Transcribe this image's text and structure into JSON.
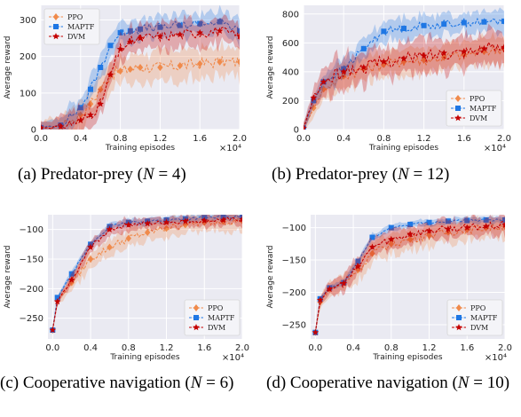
{
  "figures": [
    {
      "id": "a",
      "caption_prefix": "(a) Predator-prey (",
      "caption_var": "N",
      "caption_rel": " = 4",
      "caption_suffix": ")",
      "chart_data": {
        "type": "line",
        "xlabel": "Training episodes",
        "ylabel": "Average reward",
        "x_multiplier": "×10⁴",
        "xlim": [
          0,
          2.0
        ],
        "ylim": [
          0,
          340
        ],
        "xticks": [
          0.0,
          0.4,
          0.8,
          1.2,
          1.6,
          2.0
        ],
        "xtick_labels": [
          "0.0",
          "0.4",
          "0.8",
          "1.2",
          "1.6",
          "2.0"
        ],
        "yticks": [
          0,
          100,
          200,
          300
        ],
        "ytick_labels": [
          "0",
          "100",
          "200",
          "300"
        ],
        "legend_position": "top-left",
        "series": [
          {
            "name": "PPO",
            "color": "#f08a4b",
            "marker": "diamond",
            "spread": 40,
            "x": [
              0.0,
              0.2,
              0.4,
              0.5,
              0.6,
              0.7,
              0.8,
              0.9,
              1.0,
              1.2,
              1.4,
              1.6,
              1.8,
              2.0
            ],
            "y": [
              5,
              10,
              40,
              70,
              110,
              150,
              160,
              165,
              170,
              170,
              175,
              180,
              185,
              185
            ]
          },
          {
            "name": "MAPTF",
            "color": "#1f77e4",
            "marker": "square",
            "spread": 30,
            "x": [
              0.0,
              0.2,
              0.4,
              0.5,
              0.6,
              0.7,
              0.8,
              0.9,
              1.0,
              1.2,
              1.4,
              1.6,
              1.8,
              2.0
            ],
            "y": [
              5,
              12,
              60,
              110,
              170,
              230,
              265,
              270,
              275,
              280,
              285,
              290,
              295,
              270
            ]
          },
          {
            "name": "DVM",
            "color": "#c40000",
            "marker": "star",
            "spread": 35,
            "x": [
              0.0,
              0.2,
              0.4,
              0.5,
              0.6,
              0.7,
              0.8,
              0.9,
              1.0,
              1.2,
              1.4,
              1.6,
              1.8,
              2.0
            ],
            "y": [
              5,
              8,
              25,
              40,
              70,
              150,
              220,
              240,
              250,
              255,
              260,
              265,
              270,
              255
            ]
          }
        ]
      }
    },
    {
      "id": "b",
      "caption_prefix": "(b) Predator-prey (",
      "caption_var": "N",
      "caption_rel": " = 12",
      "caption_suffix": ")",
      "chart_data": {
        "type": "line",
        "xlabel": "Training episodes",
        "ylabel": "Average reward",
        "x_multiplier": "×10⁴",
        "xlim": [
          0,
          2.0
        ],
        "ylim": [
          0,
          860
        ],
        "xticks": [
          0.0,
          0.4,
          0.8,
          1.2,
          1.6,
          2.0
        ],
        "xtick_labels": [
          "0.0",
          "0.4",
          "0.8",
          "1.2",
          "1.6",
          "2.0"
        ],
        "yticks": [
          0,
          200,
          400,
          600,
          800
        ],
        "ytick_labels": [
          "0",
          "200",
          "400",
          "600",
          "800"
        ],
        "legend_position": "bottom-right",
        "series": [
          {
            "name": "PPO",
            "color": "#f08a4b",
            "marker": "diamond",
            "spread": 90,
            "x": [
              0.0,
              0.1,
              0.2,
              0.4,
              0.6,
              0.8,
              1.0,
              1.2,
              1.4,
              1.6,
              1.8,
              2.0
            ],
            "y": [
              10,
              150,
              280,
              370,
              420,
              450,
              470,
              480,
              500,
              520,
              540,
              560
            ]
          },
          {
            "name": "MAPTF",
            "color": "#1f77e4",
            "marker": "square",
            "spread": 70,
            "x": [
              0.0,
              0.1,
              0.2,
              0.4,
              0.6,
              0.8,
              1.0,
              1.2,
              1.4,
              1.6,
              1.8,
              2.0
            ],
            "y": [
              10,
              200,
              330,
              420,
              560,
              680,
              700,
              720,
              730,
              740,
              745,
              750
            ]
          },
          {
            "name": "DVM",
            "color": "#c40000",
            "marker": "star",
            "spread": 110,
            "x": [
              0.0,
              0.1,
              0.2,
              0.4,
              0.6,
              0.8,
              1.0,
              1.2,
              1.4,
              1.6,
              1.8,
              2.0
            ],
            "y": [
              10,
              220,
              330,
              400,
              430,
              470,
              490,
              510,
              530,
              540,
              560,
              570
            ]
          }
        ]
      }
    },
    {
      "id": "c",
      "caption_prefix": "(c) Cooperative navigation (",
      "caption_var": "N",
      "caption_rel": " = 6",
      "caption_suffix": ")",
      "chart_data": {
        "type": "line",
        "xlabel": "Training episodes",
        "ylabel": "Average reward",
        "x_multiplier": "×10⁴",
        "xlim": [
          -0.05,
          2.0
        ],
        "ylim": [
          -285,
          -75
        ],
        "xticks": [
          0.0,
          0.4,
          0.8,
          1.2,
          1.6,
          2.0
        ],
        "xtick_labels": [
          "0.0",
          "0.4",
          "0.8",
          "1.2",
          "1.6",
          "2.0"
        ],
        "yticks": [
          -100,
          -150,
          -200,
          -250
        ],
        "ytick_labels": [
          "−100",
          "−150",
          "−200",
          "−250"
        ],
        "legend_position": "bottom-right",
        "series": [
          {
            "name": "PPO",
            "color": "#f08a4b",
            "marker": "diamond",
            "spread": 15,
            "x": [
              0.0,
              0.05,
              0.2,
              0.4,
              0.6,
              0.8,
              1.0,
              1.2,
              1.4,
              1.6,
              1.8,
              2.0
            ],
            "y": [
              -270,
              -220,
              -190,
              -150,
              -130,
              -115,
              -105,
              -98,
              -92,
              -88,
              -86,
              -85
            ]
          },
          {
            "name": "MAPTF",
            "color": "#1f77e4",
            "marker": "square",
            "spread": 6,
            "x": [
              0.0,
              0.05,
              0.2,
              0.4,
              0.6,
              0.8,
              1.0,
              1.2,
              1.4,
              1.6,
              1.8,
              2.0
            ],
            "y": [
              -270,
              -215,
              -175,
              -125,
              -95,
              -88,
              -86,
              -84,
              -82,
              -80,
              -79,
              -78
            ]
          },
          {
            "name": "DVM",
            "color": "#c40000",
            "marker": "star",
            "spread": 10,
            "x": [
              0.0,
              0.05,
              0.2,
              0.4,
              0.6,
              0.8,
              1.0,
              1.2,
              1.4,
              1.6,
              1.8,
              2.0
            ],
            "y": [
              -270,
              -222,
              -185,
              -130,
              -100,
              -92,
              -90,
              -88,
              -86,
              -85,
              -84,
              -83
            ]
          }
        ]
      }
    },
    {
      "id": "d",
      "caption_prefix": "(d) Cooperative navigation (",
      "caption_var": "N",
      "caption_rel": " = 10",
      "caption_suffix": ")",
      "chart_data": {
        "type": "line",
        "xlabel": "Training episodes",
        "ylabel": "Average reward",
        "x_multiplier": "×10⁴",
        "xlim": [
          -0.05,
          2.0
        ],
        "ylim": [
          -272,
          -80
        ],
        "xticks": [
          0.0,
          0.4,
          0.8,
          1.2,
          1.6,
          2.0
        ],
        "xtick_labels": [
          "0.0",
          "0.4",
          "0.8",
          "1.2",
          "1.6",
          "2.0"
        ],
        "yticks": [
          -100,
          -150,
          -200,
          -250
        ],
        "ytick_labels": [
          "−100",
          "−150",
          "−200",
          "−250"
        ],
        "legend_position": "bottom-right",
        "series": [
          {
            "name": "PPO",
            "color": "#f08a4b",
            "marker": "diamond",
            "spread": 16,
            "x": [
              0.0,
              0.05,
              0.15,
              0.3,
              0.45,
              0.6,
              0.8,
              1.0,
              1.2,
              1.4,
              1.6,
              1.8,
              2.0
            ],
            "y": [
              -262,
              -215,
              -195,
              -185,
              -165,
              -140,
              -125,
              -118,
              -112,
              -107,
              -103,
              -100,
              -98
            ]
          },
          {
            "name": "MAPTF",
            "color": "#1f77e4",
            "marker": "square",
            "spread": 5,
            "x": [
              0.0,
              0.05,
              0.15,
              0.3,
              0.45,
              0.6,
              0.8,
              1.0,
              1.2,
              1.4,
              1.6,
              1.8,
              2.0
            ],
            "y": [
              -262,
              -210,
              -193,
              -185,
              -152,
              -115,
              -100,
              -95,
              -92,
              -90,
              -89,
              -88,
              -88
            ]
          },
          {
            "name": "DVM",
            "color": "#c40000",
            "marker": "star",
            "spread": 14,
            "x": [
              0.0,
              0.05,
              0.15,
              0.3,
              0.45,
              0.6,
              0.8,
              1.0,
              1.2,
              1.4,
              1.6,
              1.8,
              2.0
            ],
            "y": [
              -262,
              -212,
              -195,
              -186,
              -160,
              -130,
              -118,
              -110,
              -105,
              -102,
              -100,
              -98,
              -96
            ]
          }
        ]
      }
    }
  ]
}
